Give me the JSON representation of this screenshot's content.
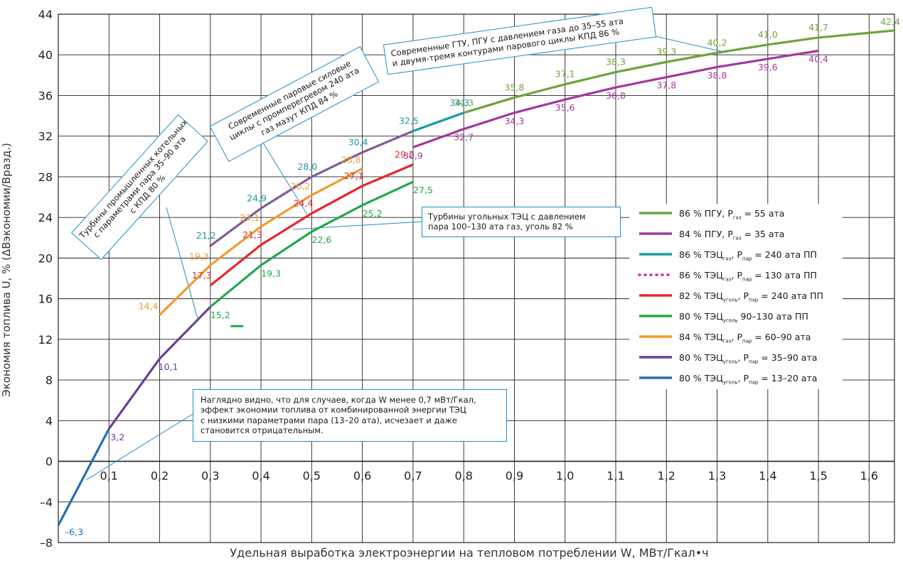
{
  "chart_data": {
    "type": "line",
    "xlabel": "Удельная выработка электроэнергии на тепловом потреблении W, МВт/Гкал•ч",
    "ylabel": "Экономия топлива U, % (ΔBэкономии/Bразд.)",
    "xlim": [
      0,
      1.65
    ],
    "ylim": [
      -8,
      44
    ],
    "x_ticks": [
      "0,1",
      "0,2",
      "0,3",
      "0,4",
      "0,5",
      "0,6",
      "0,7",
      "0,8",
      "0,9",
      "1,0",
      "1,1",
      "1,2",
      "1,3",
      "1,4",
      "1,5",
      "1,6"
    ],
    "y_ticks": [
      "44",
      "40",
      "36",
      "32",
      "28",
      "24",
      "20",
      "16",
      "12",
      "8",
      "4",
      "0",
      "–4",
      "–8"
    ],
    "grid": true,
    "legend_position": "right",
    "series": [
      {
        "name": "86 % ПГУ, Pгаз = 55 ата",
        "color": "#6ca43c",
        "style": "solid",
        "x": [
          0.8,
          0.9,
          1.0,
          1.1,
          1.2,
          1.3,
          1.4,
          1.5,
          1.65
        ],
        "y": [
          34.3,
          35.8,
          37.1,
          38.3,
          39.3,
          40.2,
          41.0,
          41.7,
          42.4
        ],
        "labels": [
          "34,3",
          "35,8",
          "37,1",
          "38,3",
          "39,3",
          "40,2",
          "41,0",
          "41,7",
          "42,4"
        ]
      },
      {
        "name": "84 % ПГУ, Pгаз = 35 ата",
        "color": "#a5379c",
        "style": "solid",
        "x": [
          0.7,
          0.8,
          0.9,
          1.0,
          1.1,
          1.2,
          1.3,
          1.4,
          1.5
        ],
        "y": [
          30.9,
          32.7,
          34.3,
          35.6,
          36.8,
          37.8,
          38.8,
          39.6,
          40.4
        ],
        "labels": [
          "30,9",
          "32,7",
          "34,3",
          "35,6",
          "36,8",
          "37,8",
          "38,8",
          "39,6",
          "40,4"
        ]
      },
      {
        "name": "86 % ТЭЦгаз, Pпар = 240 ата ПП",
        "color": "#1a9aa3",
        "style": "solid",
        "x": [
          0.3,
          0.4,
          0.5,
          0.6,
          0.7,
          0.8
        ],
        "y": [
          21.2,
          24.9,
          28.0,
          30.4,
          32.5,
          34.3
        ],
        "labels": [
          "21,2",
          "24,9",
          "28,0",
          "30,4",
          "32,5",
          "34,3"
        ]
      },
      {
        "name": "86 % ТЭЦгаз, Pпар = 130 ата ПП",
        "color": "#d62a8a",
        "style": "dotted",
        "x": [
          0.3,
          0.4,
          0.5,
          0.6,
          0.7
        ],
        "y": [
          21.2,
          24.9,
          28.0,
          30.4,
          32.5
        ],
        "labels": []
      },
      {
        "name": "82 % ТЭЦуголь, Pпар = 240 ата ПП",
        "color": "#e5262b",
        "style": "solid",
        "x": [
          0.3,
          0.4,
          0.5,
          0.6,
          0.7
        ],
        "y": [
          17.3,
          21.3,
          24.4,
          27.1,
          29.2
        ],
        "labels": [
          "17,3",
          "21,3",
          "24,4",
          "27,1",
          "29,2"
        ]
      },
      {
        "name": "80 % ТЭЦуголь 90–130 ата ПП",
        "color": "#21a84a",
        "style": "solid",
        "x": [
          0.3,
          0.4,
          0.5,
          0.6,
          0.7
        ],
        "y": [
          15.2,
          19.3,
          22.6,
          25.2,
          27.5
        ],
        "labels": [
          "15,2",
          "19,3",
          "22,6",
          "25,2",
          "27,5"
        ]
      },
      {
        "name": "84 % ТЭЦгаз, Pпар = 60–90 ата",
        "color": "#f39a2c",
        "style": "solid",
        "x": [
          0.2,
          0.3,
          0.4,
          0.5,
          0.6
        ],
        "y": [
          14.4,
          19.3,
          23.1,
          26.2,
          28.8
        ],
        "labels": [
          "14,4",
          "19,3",
          "23,1",
          "26,2",
          "28,8"
        ]
      },
      {
        "name": "80 % ТЭЦуголь, Pпар = 35–90 ата",
        "color": "#6a3d9a",
        "style": "solid",
        "x": [
          0.1,
          0.2,
          0.3
        ],
        "y": [
          3.2,
          10.1,
          15.2
        ],
        "labels": [
          "3,2",
          "10,1",
          ""
        ]
      },
      {
        "name": "80 % ТЭЦуголь, Pпар = 13–20 ата",
        "color": "#2271b5",
        "style": "solid",
        "x": [
          0.0,
          0.1
        ],
        "y": [
          -6.3,
          3.2
        ],
        "labels": [
          "–6,3",
          ""
        ]
      }
    ],
    "annotations": [
      [
        "Турбины промышленных котельных",
        "с параметрами пара 35–90 ата",
        "с КПД 80 %"
      ],
      [
        "Современные паровые силовые",
        "циклы с промперегревом 240 ата",
        "газ мазут КПД 84 %"
      ],
      [
        "Современные ГТУ, ПГУ с давлением газа до 35–55 ата",
        "и двумя-тремя контурами парового циклы КПД 86 %"
      ],
      [
        "Турбины угольных ТЭЦ с давлением",
        "пара 100–130 ата газ, уголь 82 %"
      ],
      [
        "Наглядно видно, что для случаев, когда W менее 0,7 мВт/Гкал,",
        "эффект экономии топлива от комбинированной энергии ТЭЦ",
        "с низкими параметрами пара (13–20 ата), исчезает и даже",
        "становится отрицательным."
      ]
    ]
  },
  "legend": [
    {
      "pre": "86 % ПГУ, P",
      "sub1": "газ",
      "mid": " = 55 ата",
      "sub2": "",
      "post": "",
      "color": "#6ca43c",
      "dotted": false
    },
    {
      "pre": "84 % ПГУ, P",
      "sub1": "газ",
      "mid": " = 35 ата",
      "sub2": "",
      "post": "",
      "color": "#a5379c",
      "dotted": false
    },
    {
      "pre": "86 % ТЭЦ",
      "sub1": "газ",
      "mid": ", P",
      "sub2": "пар",
      "post": " = 240 ата ПП",
      "color": "#1a9aa3",
      "dotted": false
    },
    {
      "pre": "86 % ТЭЦ",
      "sub1": "газ",
      "mid": ", P",
      "sub2": "пар",
      "post": " = 130 ата ПП",
      "color": "#d62a8a",
      "dotted": true
    },
    {
      "pre": "82 % ТЭЦ",
      "sub1": "уголь",
      "mid": ", P",
      "sub2": "пар",
      "post": " = 240 ата ПП",
      "color": "#e5262b",
      "dotted": false
    },
    {
      "pre": "80 % ТЭЦ",
      "sub1": "уголь",
      "mid": " 90–130 ата ПП",
      "sub2": "",
      "post": "",
      "color": "#21a84a",
      "dotted": false
    },
    {
      "pre": "84 % ТЭЦ",
      "sub1": "газ",
      "mid": ", P",
      "sub2": "пар",
      "post": " = 60–90 ата",
      "color": "#f39a2c",
      "dotted": false
    },
    {
      "pre": "80 % ТЭЦ",
      "sub1": "уголь",
      "mid": ", P",
      "sub2": "пар",
      "post": " = 35–90 ата",
      "color": "#6a3d9a",
      "dotted": false
    },
    {
      "pre": "80 % ТЭЦ",
      "sub1": "уголь",
      "mid": ", P",
      "sub2": "пар",
      "post": " = 13–20 ата",
      "color": "#2271b5",
      "dotted": false
    }
  ]
}
